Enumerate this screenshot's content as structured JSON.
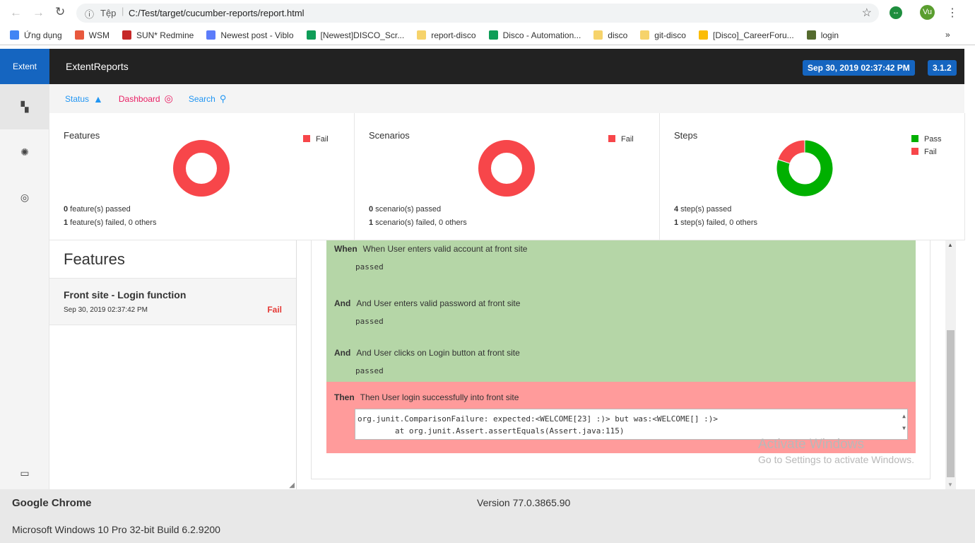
{
  "browser": {
    "scheme_label": "Tệp",
    "url": "C:/Test/target/cucumber-reports/report.html",
    "profile": "Vu",
    "bookmarks": [
      {
        "label": "Ứng dụng",
        "color": "#4285f4"
      },
      {
        "label": "WSM",
        "color": "#e8583d"
      },
      {
        "label": "SUN* Redmine",
        "color": "#c62828"
      },
      {
        "label": "Newest post - Viblo",
        "color": "#5c7cfa"
      },
      {
        "label": "[Newest]DISCO_Scr...",
        "color": "#0f9d58"
      },
      {
        "label": "report-disco",
        "color": "#f6d36b"
      },
      {
        "label": "Disco - Automation...",
        "color": "#0f9d58"
      },
      {
        "label": "disco",
        "color": "#f6d36b"
      },
      {
        "label": "git-disco",
        "color": "#f6d36b"
      },
      {
        "label": "[Disco]_CareerForu...",
        "color": "#fbbc04"
      },
      {
        "label": "login",
        "color": "#556b2f"
      }
    ],
    "more": "»"
  },
  "app": {
    "brand": "Extent",
    "title": "ExtentReports",
    "timestamp": "Sep 30, 2019 02:37:42 PM",
    "version": "3.1.2"
  },
  "subnav": {
    "status": "Status",
    "dashboard": "Dashboard",
    "search": "Search"
  },
  "colors": {
    "pass": "#00b000",
    "fail": "#f7464a",
    "accent": "#1565c0"
  },
  "cards": [
    {
      "title": "Features",
      "legend": [
        {
          "label": "Fail",
          "color": "#f7464a"
        }
      ],
      "pass": 0,
      "fail": 1,
      "line1_count": "0",
      "line1": " feature(s) passed",
      "line2_count": "1",
      "line2": " feature(s) failed, 0 others"
    },
    {
      "title": "Scenarios",
      "legend": [
        {
          "label": "Fail",
          "color": "#f7464a"
        }
      ],
      "pass": 0,
      "fail": 1,
      "line1_count": "0",
      "line1": " scenario(s) passed",
      "line2_count": "1",
      "line2": " scenario(s) failed, 0 others"
    },
    {
      "title": "Steps",
      "legend": [
        {
          "label": "Pass",
          "color": "#00b000"
        },
        {
          "label": "Fail",
          "color": "#f7464a"
        }
      ],
      "pass": 4,
      "fail": 1,
      "line1_count": "4",
      "line1": " step(s) passed",
      "line2_count": "1",
      "line2": " step(s) failed, 0 others"
    }
  ],
  "features": {
    "heading": "Features",
    "item": {
      "name": "Front site - Login function",
      "date": "Sep 30, 2019 02:37:42 PM",
      "status": "Fail"
    }
  },
  "steps": [
    {
      "keyword": "When",
      "text": "When User enters valid account at front site",
      "result": "passed"
    },
    {
      "keyword": "And",
      "text": "And User enters valid password at front site",
      "result": "passed"
    },
    {
      "keyword": "And",
      "text": "And User clicks on Login button at front site",
      "result": "passed"
    },
    {
      "keyword": "Then",
      "text": "Then User login successfully into front site",
      "error": "org.junit.ComparisonFailure: expected:<WELCOME[23] :)> but was:<WELCOME[] :)>\n        at org.junit.Assert.assertEquals(Assert.java:115)"
    }
  ],
  "watermark": {
    "title": "Activate Windows",
    "subtitle": "Go to Settings to activate Windows."
  },
  "footer": {
    "app": "Google Chrome",
    "version": "Version 77.0.3865.90",
    "os": "Microsoft Windows 10 Pro 32-bit Build 6.2.9200"
  }
}
